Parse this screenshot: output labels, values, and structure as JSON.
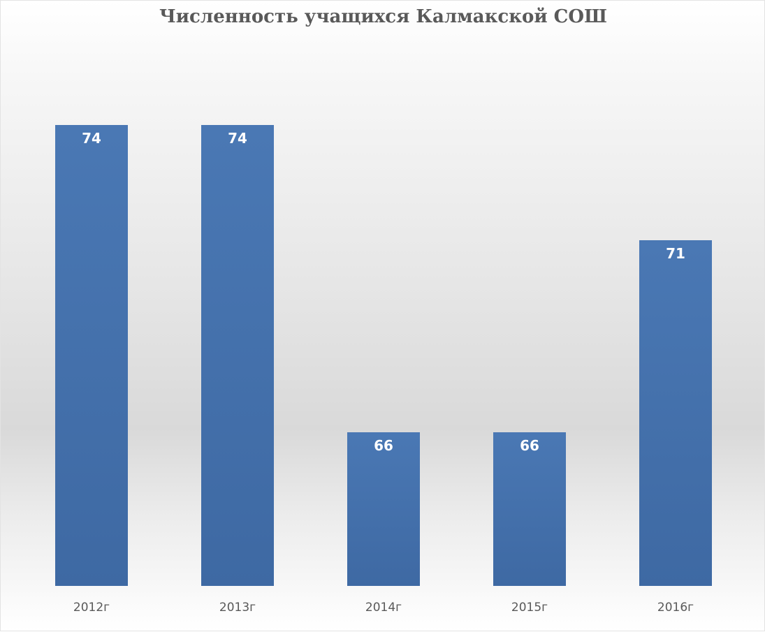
{
  "chart_data": {
    "type": "bar",
    "title": "Численность учащихся Калмакской СОШ",
    "categories": [
      "2012г",
      "2013г",
      "2014г",
      "2015г",
      "2016г"
    ],
    "values": [
      74,
      74,
      66,
      66,
      71
    ],
    "xlabel": "",
    "ylabel": "",
    "grid": false,
    "legend": "none",
    "bar_color": "#4A78B4",
    "bar_color_dark": "#3E69A3",
    "label_color": "#FFFFFF",
    "text_color": "#595959"
  }
}
